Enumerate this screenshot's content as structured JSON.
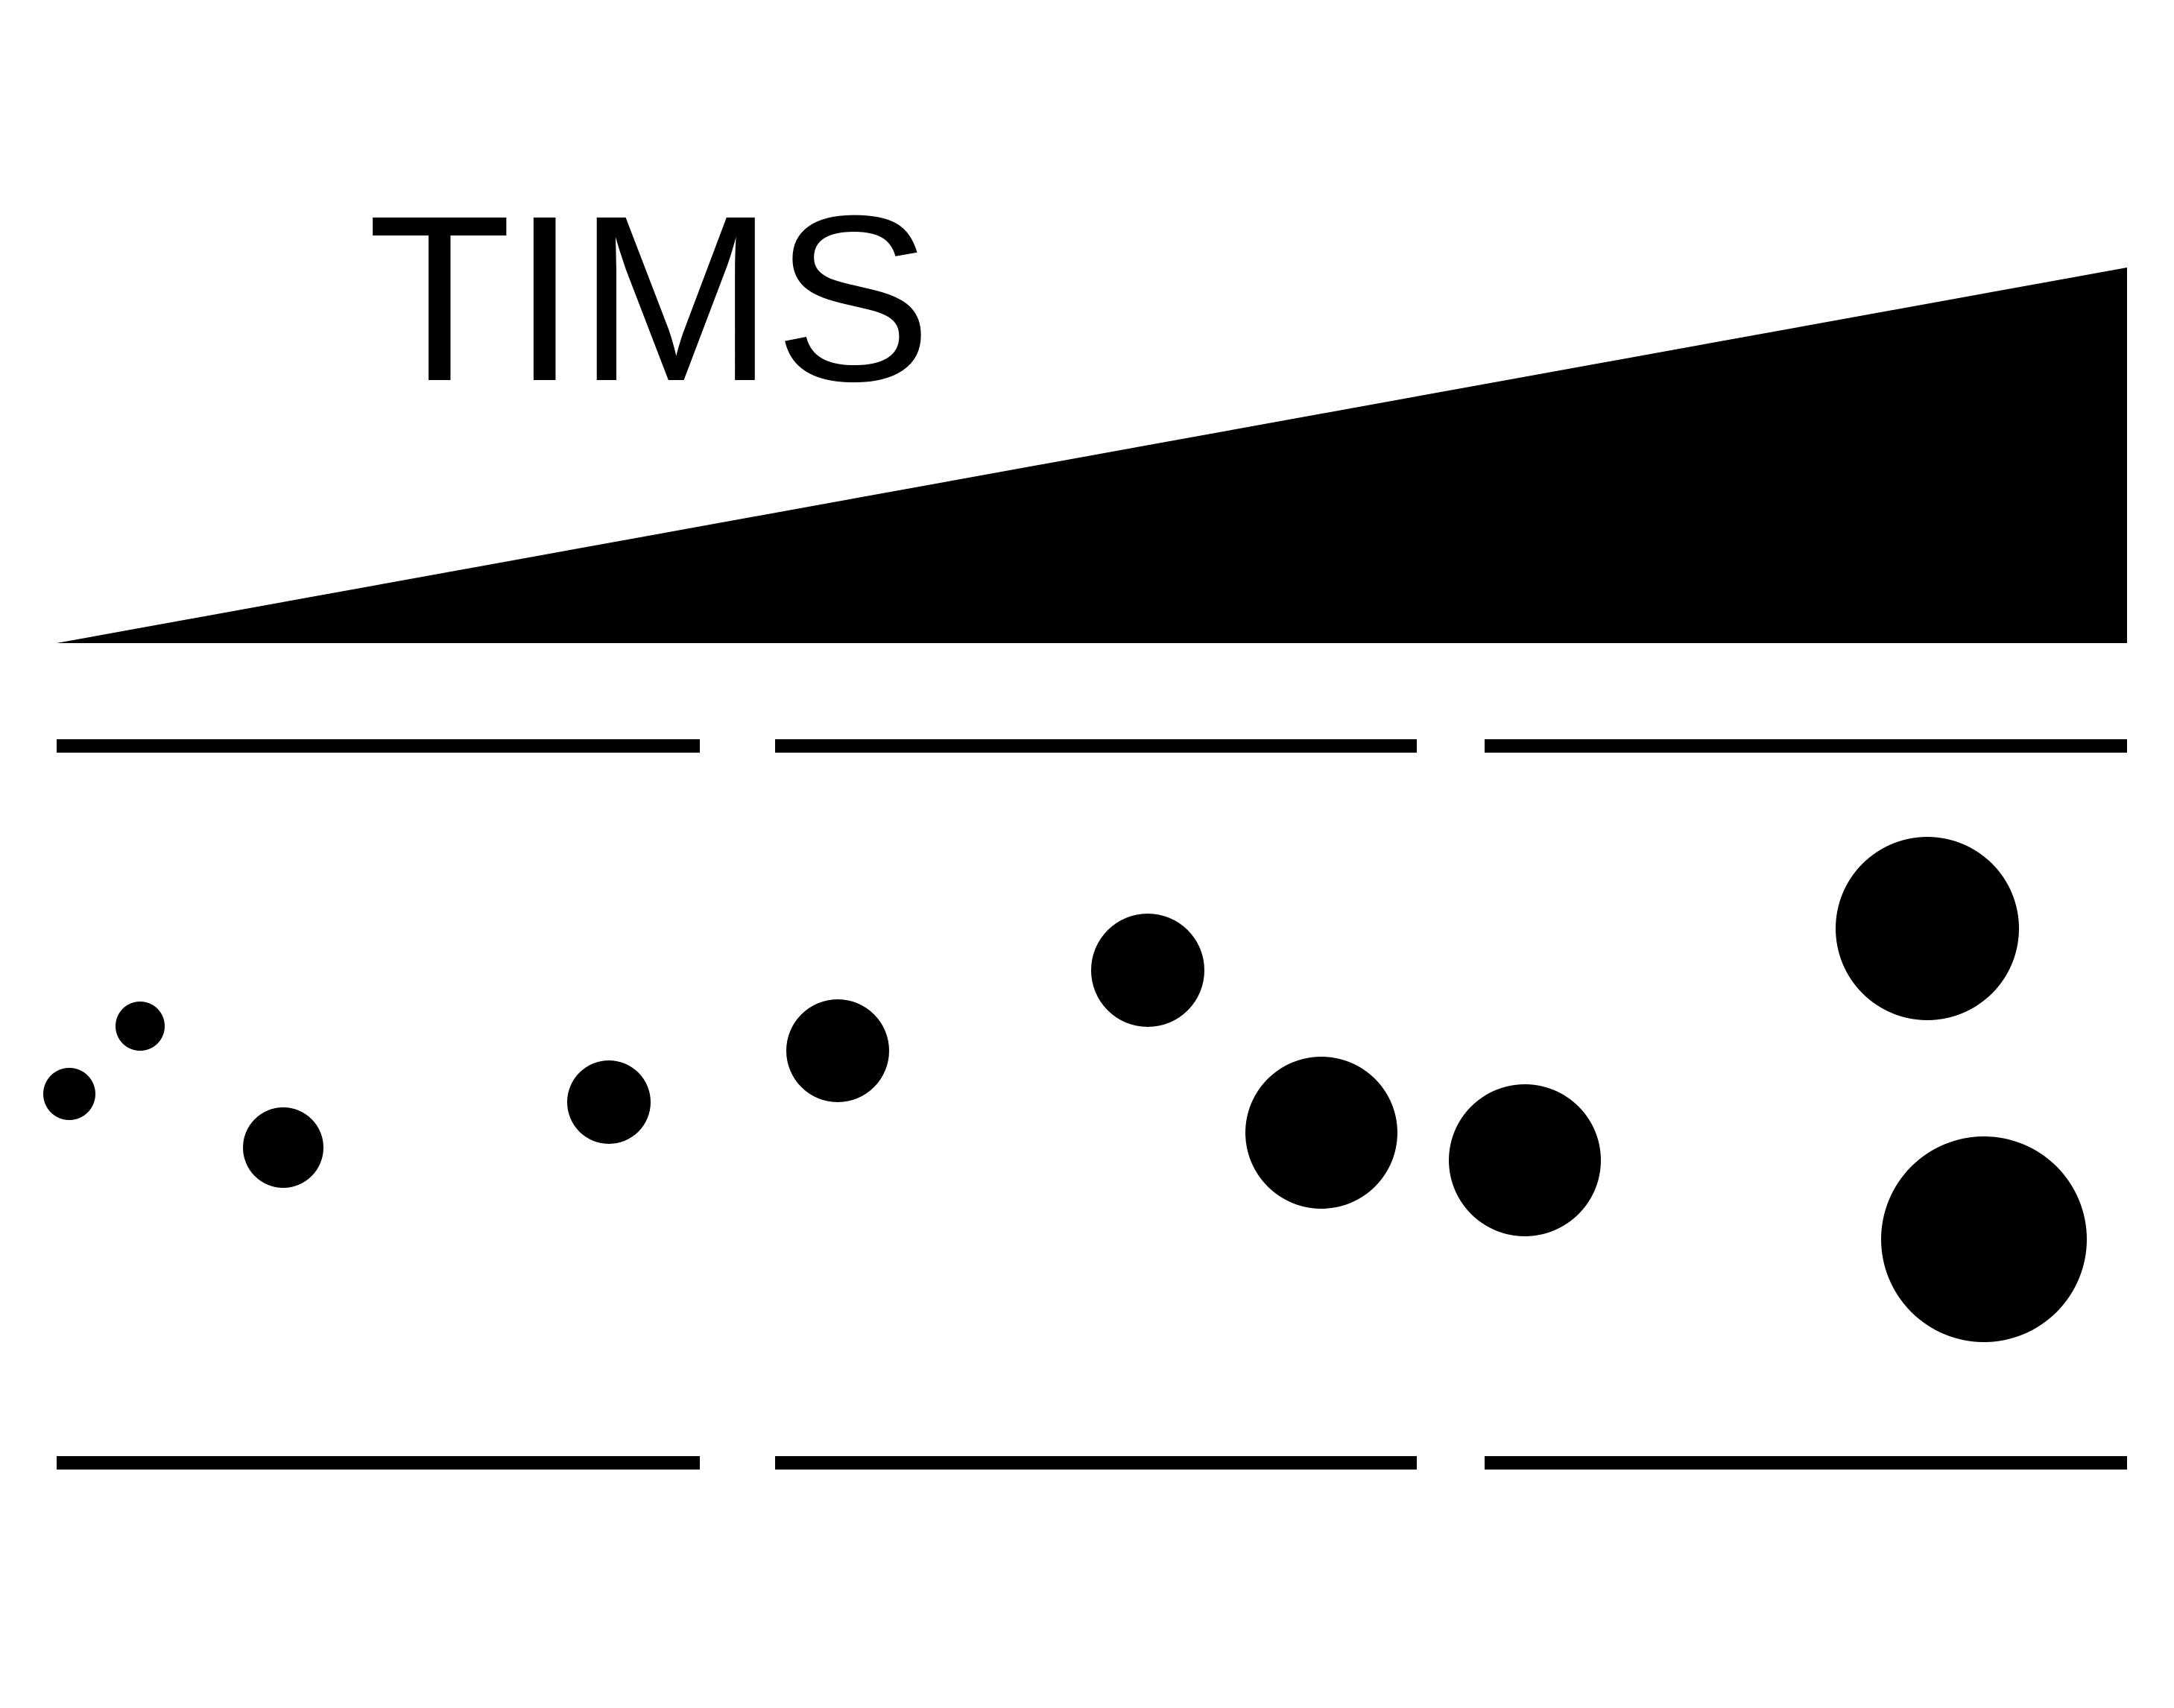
{
  "title": "TIMS"
}
